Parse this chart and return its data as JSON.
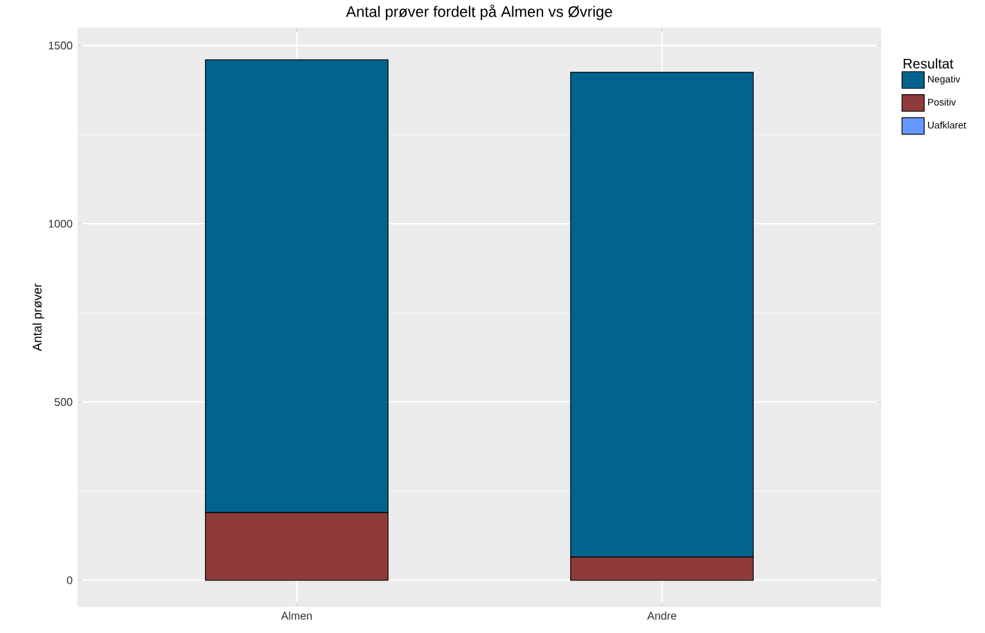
{
  "chart_data": {
    "type": "bar",
    "title": "Antal prøver fordelt på Almen vs Øvrige",
    "ylabel": "Antal prøver",
    "legend_title": "Resultat",
    "categories": [
      "Almen",
      "Andre"
    ],
    "stacked": true,
    "series": [
      {
        "name": "Uafklaret",
        "color": "#6699ff",
        "values": [
          0,
          0
        ]
      },
      {
        "name": "Positiv",
        "color": "#8f3b3b",
        "values": [
          190,
          65
        ]
      },
      {
        "name": "Negativ",
        "color": "#00648c",
        "values": [
          1270,
          1360
        ]
      }
    ],
    "ylim": [
      -74,
      1550
    ],
    "yticks": [
      0,
      500,
      1000,
      1500
    ],
    "grid": true,
    "legend": "right"
  }
}
